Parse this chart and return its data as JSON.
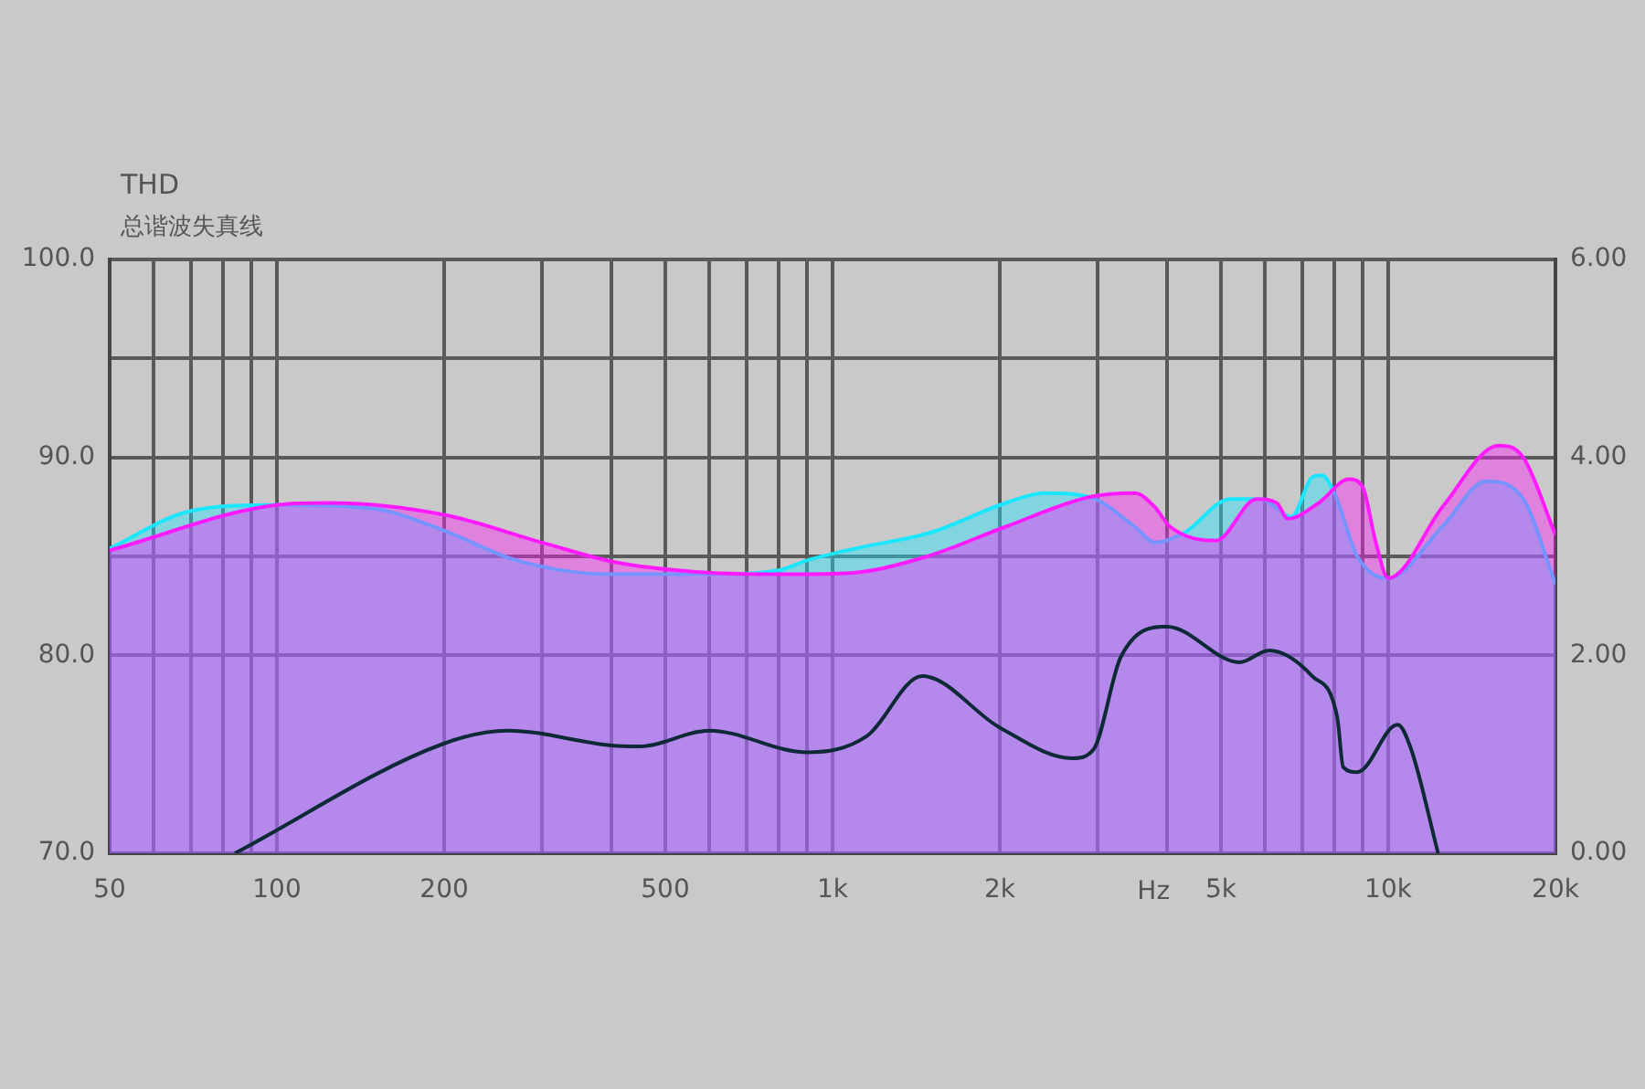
{
  "chart_data": {
    "type": "area",
    "xlabel": "Hz",
    "log": "x",
    "grid": true,
    "marker": "none",
    "annotations": [
      "THD",
      "总谐波失真线"
    ],
    "xlim": [
      50,
      20000
    ],
    "xticks": [
      50,
      {
        "value": 60,
        "label": null
      },
      {
        "value": 70,
        "label": null
      },
      {
        "value": 80,
        "label": null
      },
      {
        "value": 90,
        "label": null
      },
      100,
      200,
      {
        "value": 300,
        "label": null
      },
      {
        "value": 400,
        "label": null
      },
      500,
      {
        "value": 600,
        "label": null
      },
      {
        "value": 700,
        "label": null
      },
      {
        "value": 800,
        "label": null
      },
      {
        "value": 900,
        "label": null
      },
      {
        "value": 1000,
        "label": "1k"
      },
      {
        "value": 2000,
        "label": "2k"
      },
      {
        "value": 3000,
        "label": null
      },
      {
        "value": 4000,
        "label": null
      },
      {
        "value": 5000,
        "label": "5k"
      },
      {
        "value": 6000,
        "label": null
      },
      {
        "value": 7000,
        "label": null
      },
      {
        "value": 8000,
        "label": null
      },
      {
        "value": 9000,
        "label": null
      },
      {
        "value": 10000,
        "label": "10k"
      },
      {
        "value": 20000,
        "label": "20k"
      }
    ],
    "ylim": [
      70,
      100
    ],
    "yticks": [
      {
        "value": 70,
        "label": "70.0"
      },
      {
        "value": 80,
        "label": "80.0"
      },
      {
        "value": 85,
        "label": null
      },
      {
        "value": 90,
        "label": "90.0"
      },
      {
        "value": 95,
        "label": null
      },
      {
        "value": 100,
        "label": "100.0"
      }
    ],
    "y2lim": [
      0,
      6
    ],
    "y2ticks": [
      {
        "value": 0,
        "label": "0.00"
      },
      {
        "value": 2,
        "label": "2.00"
      },
      {
        "value": 4,
        "label": "4.00"
      },
      {
        "value": 6,
        "label": "6.00"
      }
    ],
    "series": [
      {
        "color": "#ff1aff",
        "x": [
          50,
          100,
          124,
          200,
          300,
          407,
          578,
          748,
          900,
          1120,
          1480,
          2050,
          2900,
          3500,
          3800,
          4050,
          4900,
          5800,
          6300,
          6600,
          7500,
          8500,
          9000,
          9500,
          10000,
          12600,
          15800,
          17500,
          20000
        ],
        "values": [
          85.3,
          87.6,
          87.7,
          87.1,
          85.7,
          84.7,
          84.2,
          84.1,
          84.1,
          84.2,
          85.0,
          86.5,
          88.0,
          88.2,
          87.5,
          86.5,
          85.8,
          87.9,
          87.7,
          86.9,
          87.7,
          88.9,
          88.5,
          85.7,
          83.9,
          87.6,
          90.6,
          90.0,
          86.1
        ]
      },
      {
        "color": "#1ae6ff",
        "x": [
          50,
          70,
          100,
          150,
          200,
          270,
          400,
          600,
          800,
          900,
          1100,
          1500,
          2050,
          2400,
          2900,
          3500,
          3800,
          4300,
          5200,
          5900,
          6700,
          7300,
          7600,
          8000,
          8800,
          10000,
          12600,
          15000,
          17500,
          20000
        ],
        "values": [
          85.4,
          87.3,
          87.6,
          87.4,
          86.3,
          84.8,
          84.1,
          84.1,
          84.3,
          84.8,
          85.4,
          86.2,
          87.7,
          88.2,
          88.0,
          86.5,
          85.7,
          86.2,
          87.9,
          87.9,
          87.0,
          89.0,
          89.1,
          88.2,
          85.0,
          83.9,
          86.6,
          88.8,
          87.9,
          83.6
        ]
      },
      {
        "type": "line",
        "axis": "y2",
        "color": "#0d2a36",
        "x": [
          84,
          200,
          260,
          400,
          450,
          600,
          900,
          1150,
          1450,
          2000,
          2700,
          2950,
          3300,
          4000,
          5400,
          6100,
          7300,
          8100,
          8300,
          8800,
          10400,
          11000,
          12300
        ],
        "values": [
          0,
          1.11,
          1.24,
          1.09,
          1.08,
          1.24,
          1.02,
          1.18,
          1.79,
          1.27,
          0.96,
          1.05,
          1.98,
          2.29,
          1.93,
          2.05,
          1.79,
          1.37,
          0.87,
          0.82,
          1.3,
          1.05,
          0
        ]
      }
    ]
  }
}
